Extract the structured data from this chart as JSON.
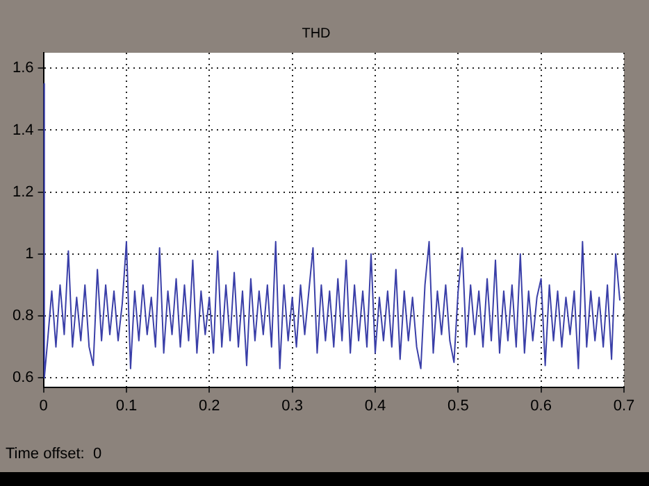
{
  "chart_data": {
    "type": "line",
    "title": "THD",
    "annotations": [
      "Time offset:  0"
    ],
    "x": [
      0,
      0.001,
      0.005,
      0.01,
      0.015,
      0.02,
      0.025,
      0.03,
      0.035,
      0.04,
      0.045,
      0.05,
      0.055,
      0.06,
      0.065,
      0.07,
      0.075,
      0.08,
      0.085,
      0.09,
      0.095,
      0.1,
      0.105,
      0.11,
      0.115,
      0.12,
      0.125,
      0.13,
      0.135,
      0.14,
      0.145,
      0.15,
      0.155,
      0.16,
      0.165,
      0.17,
      0.175,
      0.18,
      0.185,
      0.19,
      0.195,
      0.2,
      0.205,
      0.21,
      0.215,
      0.22,
      0.225,
      0.23,
      0.235,
      0.24,
      0.245,
      0.25,
      0.255,
      0.26,
      0.265,
      0.27,
      0.275,
      0.28,
      0.285,
      0.29,
      0.295,
      0.3,
      0.305,
      0.31,
      0.315,
      0.32,
      0.325,
      0.33,
      0.335,
      0.34,
      0.345,
      0.35,
      0.355,
      0.36,
      0.365,
      0.37,
      0.375,
      0.38,
      0.385,
      0.39,
      0.395,
      0.4,
      0.405,
      0.41,
      0.415,
      0.42,
      0.425,
      0.43,
      0.435,
      0.44,
      0.445,
      0.45,
      0.455,
      0.46,
      0.465,
      0.47,
      0.475,
      0.48,
      0.485,
      0.49,
      0.495,
      0.5,
      0.505,
      0.51,
      0.515,
      0.52,
      0.525,
      0.53,
      0.535,
      0.54,
      0.545,
      0.55,
      0.555,
      0.56,
      0.565,
      0.57,
      0.575,
      0.58,
      0.585,
      0.59,
      0.595,
      0.6,
      0.605,
      0.61,
      0.615,
      0.62,
      0.625,
      0.63,
      0.635,
      0.64,
      0.645,
      0.65,
      0.655,
      0.66,
      0.665,
      0.67,
      0.675,
      0.68,
      0.685,
      0.69,
      0.695
    ],
    "series": [
      {
        "color": "#3a3fa8",
        "values": [
          1.55,
          0.6,
          0.72,
          0.88,
          0.7,
          0.9,
          0.74,
          1.01,
          0.7,
          0.86,
          0.72,
          0.9,
          0.7,
          0.64,
          0.95,
          0.72,
          0.9,
          0.74,
          0.88,
          0.72,
          0.84,
          1.04,
          0.63,
          0.88,
          0.72,
          0.9,
          0.74,
          0.86,
          0.7,
          1.02,
          0.68,
          0.88,
          0.74,
          0.92,
          0.7,
          0.9,
          0.72,
          0.98,
          0.68,
          0.88,
          0.74,
          0.86,
          0.68,
          1.01,
          0.7,
          0.9,
          0.72,
          0.94,
          0.7,
          0.88,
          0.64,
          0.92,
          0.72,
          0.88,
          0.74,
          0.9,
          0.7,
          1.04,
          0.63,
          0.9,
          0.72,
          0.86,
          0.7,
          0.9,
          0.74,
          0.88,
          1.02,
          0.68,
          0.9,
          0.72,
          0.88,
          0.7,
          0.92,
          0.72,
          0.98,
          0.68,
          0.9,
          0.72,
          0.88,
          0.7,
          1.0,
          0.68,
          0.86,
          0.72,
          0.88,
          0.7,
          0.95,
          0.66,
          0.88,
          0.72,
          0.86,
          0.7,
          0.63,
          0.9,
          1.04,
          0.68,
          0.88,
          0.74,
          0.9,
          0.72,
          0.65,
          0.88,
          1.02,
          0.7,
          0.9,
          0.74,
          0.88,
          0.7,
          0.92,
          0.72,
          0.98,
          0.68,
          0.88,
          0.72,
          0.9,
          0.7,
          1.0,
          0.68,
          0.88,
          0.72,
          0.86,
          0.92,
          0.64,
          0.9,
          0.72,
          0.88,
          0.7,
          0.86,
          0.74,
          0.88,
          0.63,
          1.04,
          0.7,
          0.88,
          0.72,
          0.86,
          0.7,
          0.9,
          0.66,
          1.0,
          0.85
        ]
      }
    ],
    "xlim": [
      0,
      0.7
    ],
    "xticks": [
      0,
      0.1,
      0.2,
      0.3,
      0.4,
      0.5,
      0.6,
      0.7
    ],
    "ylim": [
      0.57,
      1.65
    ],
    "yticks": [
      0.6,
      0.8,
      1,
      1.2,
      1.4,
      1.6
    ],
    "grid": true,
    "line_style": "solid",
    "marker": "none"
  }
}
